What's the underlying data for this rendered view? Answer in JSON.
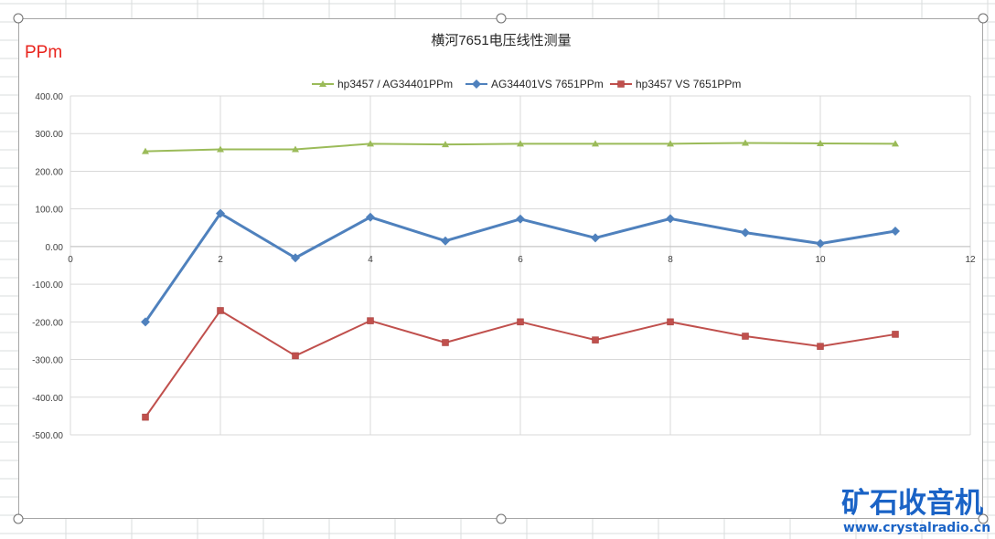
{
  "chart_data": {
    "type": "line",
    "title": "横河7651电压线性测量",
    "unit_label": "PPm",
    "x": [
      1,
      2,
      3,
      4,
      5,
      6,
      7,
      8,
      9,
      10,
      11
    ],
    "xlim": [
      0,
      12
    ],
    "x_ticks": [
      "0",
      "2",
      "4",
      "6",
      "8",
      "10",
      "12"
    ],
    "ylim": [
      -500,
      400
    ],
    "y_ticks": [
      "400.00",
      "300.00",
      "200.00",
      "100.00",
      "0.00",
      "-100.00",
      "-200.00",
      "-300.00",
      "-400.00",
      "-500.00"
    ],
    "grid": true,
    "legend_position": "top",
    "series": [
      {
        "name": "hp3457 / AG34401PPm",
        "color": "#9bbb59",
        "marker": "triangle",
        "values": [
          253,
          258,
          258,
          273,
          271,
          273,
          273,
          273,
          275,
          274,
          273
        ]
      },
      {
        "name": "AG34401VS 7651PPm",
        "color": "#4f81bd",
        "marker": "diamond",
        "values": [
          -200,
          88,
          -30,
          78,
          15,
          73,
          23,
          74,
          37,
          8,
          41
        ]
      },
      {
        "name": "hp3457 VS 7651PPm",
        "color": "#c0504d",
        "marker": "square",
        "values": [
          -453,
          -170,
          -290,
          -197,
          -255,
          -200,
          -248,
          -200,
          -238,
          -265,
          -233
        ]
      }
    ]
  },
  "watermark": {
    "brand": "矿石收音机",
    "url": "www.crystalradio.cn"
  }
}
